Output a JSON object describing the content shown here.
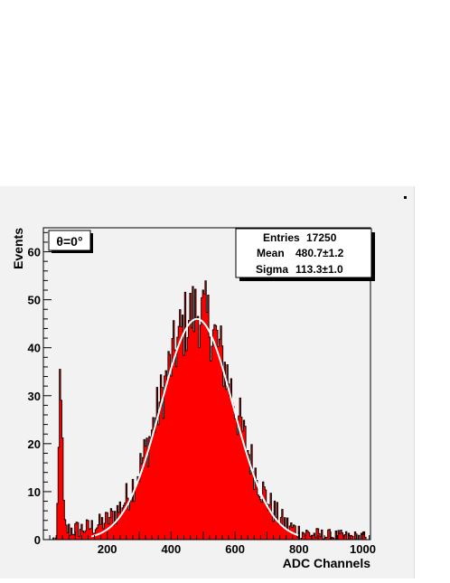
{
  "chart_data": {
    "type": "histogram",
    "title": "",
    "xlabel": "ADC Channels",
    "ylabel": "Events",
    "xlim": [
      0,
      1024
    ],
    "ylim": [
      0,
      65
    ],
    "x_ticks": [
      200,
      400,
      600,
      800,
      1000
    ],
    "y_ticks": [
      0,
      10,
      20,
      30,
      40,
      50,
      60
    ],
    "annotation": "θ=0°",
    "stats": {
      "entries_label": "Entries",
      "entries_value": "17250",
      "mean_label": "Mean",
      "mean_value": "480.7±1.2",
      "sigma_label": "Sigma",
      "sigma_value": "113.3±1.0"
    },
    "histogram": {
      "fill_color": "#ff0000",
      "line_color": "#000000",
      "bin_width": 4,
      "pedestal_peak": {
        "center": 52,
        "width": 5,
        "height": 36
      },
      "pedestal_tail_level": 2
    },
    "fit": {
      "function": "gaussian",
      "mean": 480.7,
      "sigma": 113.3,
      "amplitude": 46,
      "range": [
        150,
        800
      ],
      "color": "#ffffff"
    }
  }
}
